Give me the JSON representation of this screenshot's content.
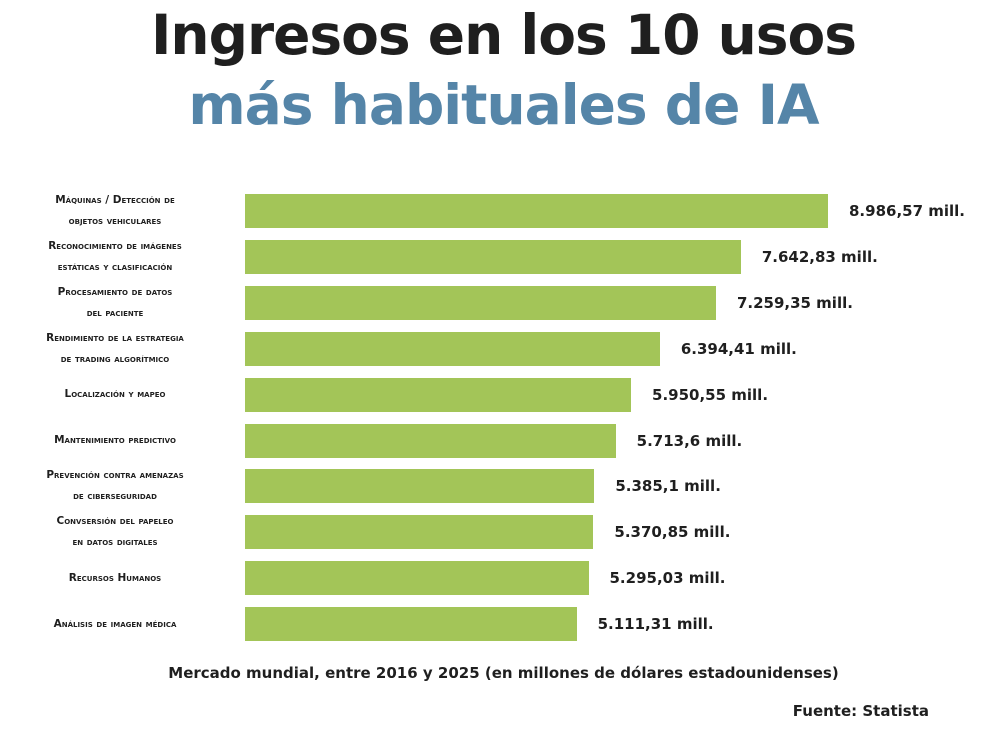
{
  "chart_data": {
    "type": "bar",
    "orientation": "horizontal",
    "title": {
      "line1": "Ingresos en los 10 usos",
      "line2": "más habituales de IA"
    },
    "subtitle": "Mercado mundial, entre 2016 y 2025 (en millones de dólares estadounidenses)",
    "source": "Fuente: Statista",
    "categories": [
      [
        "Máquinas / Detección de",
        "objetos vehiculares"
      ],
      [
        "Reconocimiento de imágenes",
        "estáticas y clasificación"
      ],
      [
        "Procesamiento de datos",
        "del paciente"
      ],
      [
        "Rendimiento de la estrategia",
        "de trading algorítmico"
      ],
      [
        "Localización y mapeo"
      ],
      [
        "Mantenimiento predictivo"
      ],
      [
        "Prevención contra amenazas",
        "de ciberseguridad"
      ],
      [
        "Convsersión del papeleo",
        "en datos digitales"
      ],
      [
        "Recursos Humanos"
      ],
      [
        "Análisis de imagen médica"
      ]
    ],
    "values": [
      8986.57,
      7642.83,
      7259.35,
      6394.41,
      5950.55,
      5713.6,
      5385.1,
      5370.85,
      5295.03,
      5111.31
    ],
    "value_labels": [
      "8.986,57 mill.",
      "7.642,83 mill.",
      "7.259,35 mill.",
      "6.394,41 mill.",
      "5.950,55 mill.",
      "5.713,6 mill.",
      "5.385,1 mill.",
      "5.370,85 mill.",
      "5.295,03 mill.",
      "5.111,31 mill."
    ],
    "xlim": [
      0,
      8986.57
    ],
    "grid": false,
    "legend": "none",
    "colors": {
      "bar": "#a3c558",
      "title_line1": "#1f1f1f",
      "title_line2": "#5585a8",
      "text": "#1f1f1f"
    }
  }
}
